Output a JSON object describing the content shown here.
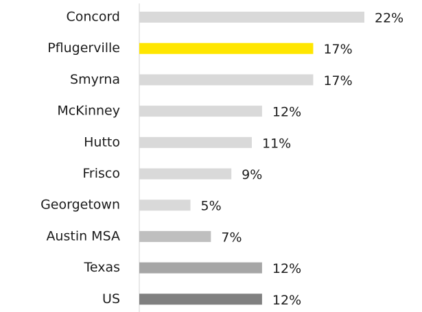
{
  "chart_data": {
    "type": "hbar",
    "categories": [
      "Concord",
      "Pflugerville",
      "Smyrna",
      "McKinney",
      "Hutto",
      "Frisco",
      "Georgetown",
      "Austin MSA",
      "Texas",
      "US"
    ],
    "values": [
      22,
      17,
      17,
      12,
      11,
      9,
      5,
      7,
      12,
      12
    ],
    "value_labels": [
      "22%",
      "17%",
      "17%",
      "12%",
      "11%",
      "9%",
      "5%",
      "7%",
      "12%",
      "12%"
    ],
    "colors": [
      "#d9d9d9",
      "#ffe600",
      "#d9d9d9",
      "#d9d9d9",
      "#d9d9d9",
      "#d9d9d9",
      "#d9d9d9",
      "#bfbfbf",
      "#a6a6a6",
      "#808080"
    ]
  }
}
